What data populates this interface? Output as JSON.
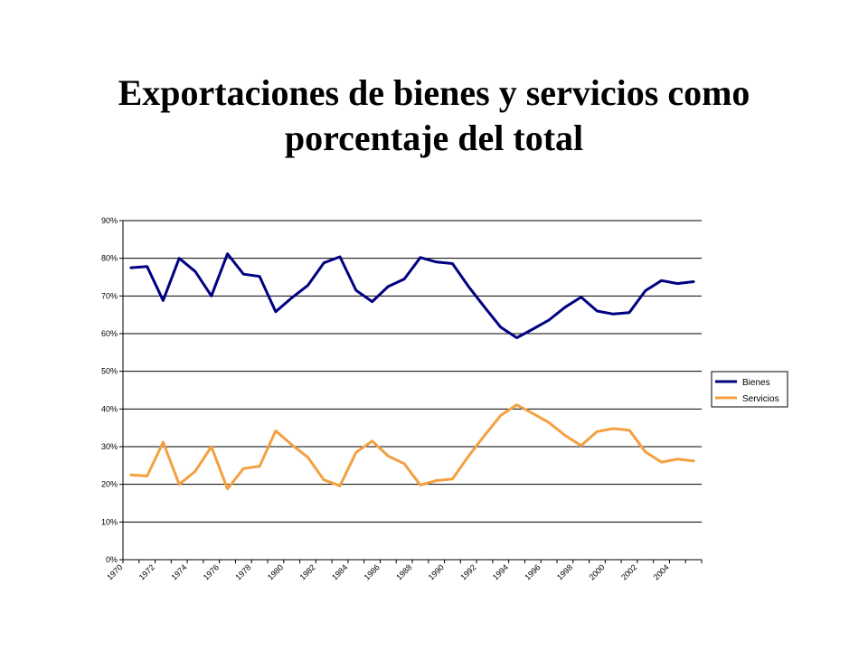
{
  "chart_data": {
    "type": "line",
    "title": "Exportaciones de bienes y servicios como porcentaje del total",
    "xlabel": "",
    "ylabel": "",
    "ylim": [
      0,
      0.9
    ],
    "yticks": [
      "0%",
      "10%",
      "20%",
      "30%",
      "40%",
      "50%",
      "60%",
      "70%",
      "80%",
      "90%"
    ],
    "xtick_labels": [
      "1970",
      "1972",
      "1974",
      "1976",
      "1978",
      "1980",
      "1982",
      "1984",
      "1986",
      "1988",
      "1990",
      "1992",
      "1994",
      "1996",
      "1998",
      "2000",
      "2002",
      "2004"
    ],
    "x": [
      1970,
      1971,
      1972,
      1973,
      1974,
      1975,
      1976,
      1977,
      1978,
      1979,
      1980,
      1981,
      1982,
      1983,
      1984,
      1985,
      1986,
      1987,
      1988,
      1989,
      1990,
      1991,
      1992,
      1993,
      1994,
      1995,
      1996,
      1997,
      1998,
      1999,
      2000,
      2001,
      2002,
      2003,
      2004,
      2005
    ],
    "grid": true,
    "legend": "right",
    "series": [
      {
        "name": "Bienes",
        "color": "#000080",
        "values": [
          0.775,
          0.778,
          0.688,
          0.8,
          0.765,
          0.7,
          0.812,
          0.758,
          0.752,
          0.658,
          0.695,
          0.728,
          0.788,
          0.804,
          0.715,
          0.685,
          0.725,
          0.745,
          0.802,
          0.79,
          0.786,
          0.725,
          0.67,
          0.617,
          0.589,
          0.612,
          0.636,
          0.67,
          0.697,
          0.66,
          0.652,
          0.656,
          0.714,
          0.741,
          0.733,
          0.738
        ]
      },
      {
        "name": "Servicios",
        "color": "#F4A040",
        "values": [
          0.225,
          0.222,
          0.312,
          0.2,
          0.235,
          0.3,
          0.188,
          0.242,
          0.248,
          0.342,
          0.305,
          0.272,
          0.212,
          0.196,
          0.285,
          0.315,
          0.275,
          0.255,
          0.198,
          0.21,
          0.214,
          0.275,
          0.33,
          0.383,
          0.411,
          0.388,
          0.364,
          0.33,
          0.303,
          0.34,
          0.348,
          0.344,
          0.286,
          0.259,
          0.267,
          0.262
        ]
      }
    ]
  }
}
